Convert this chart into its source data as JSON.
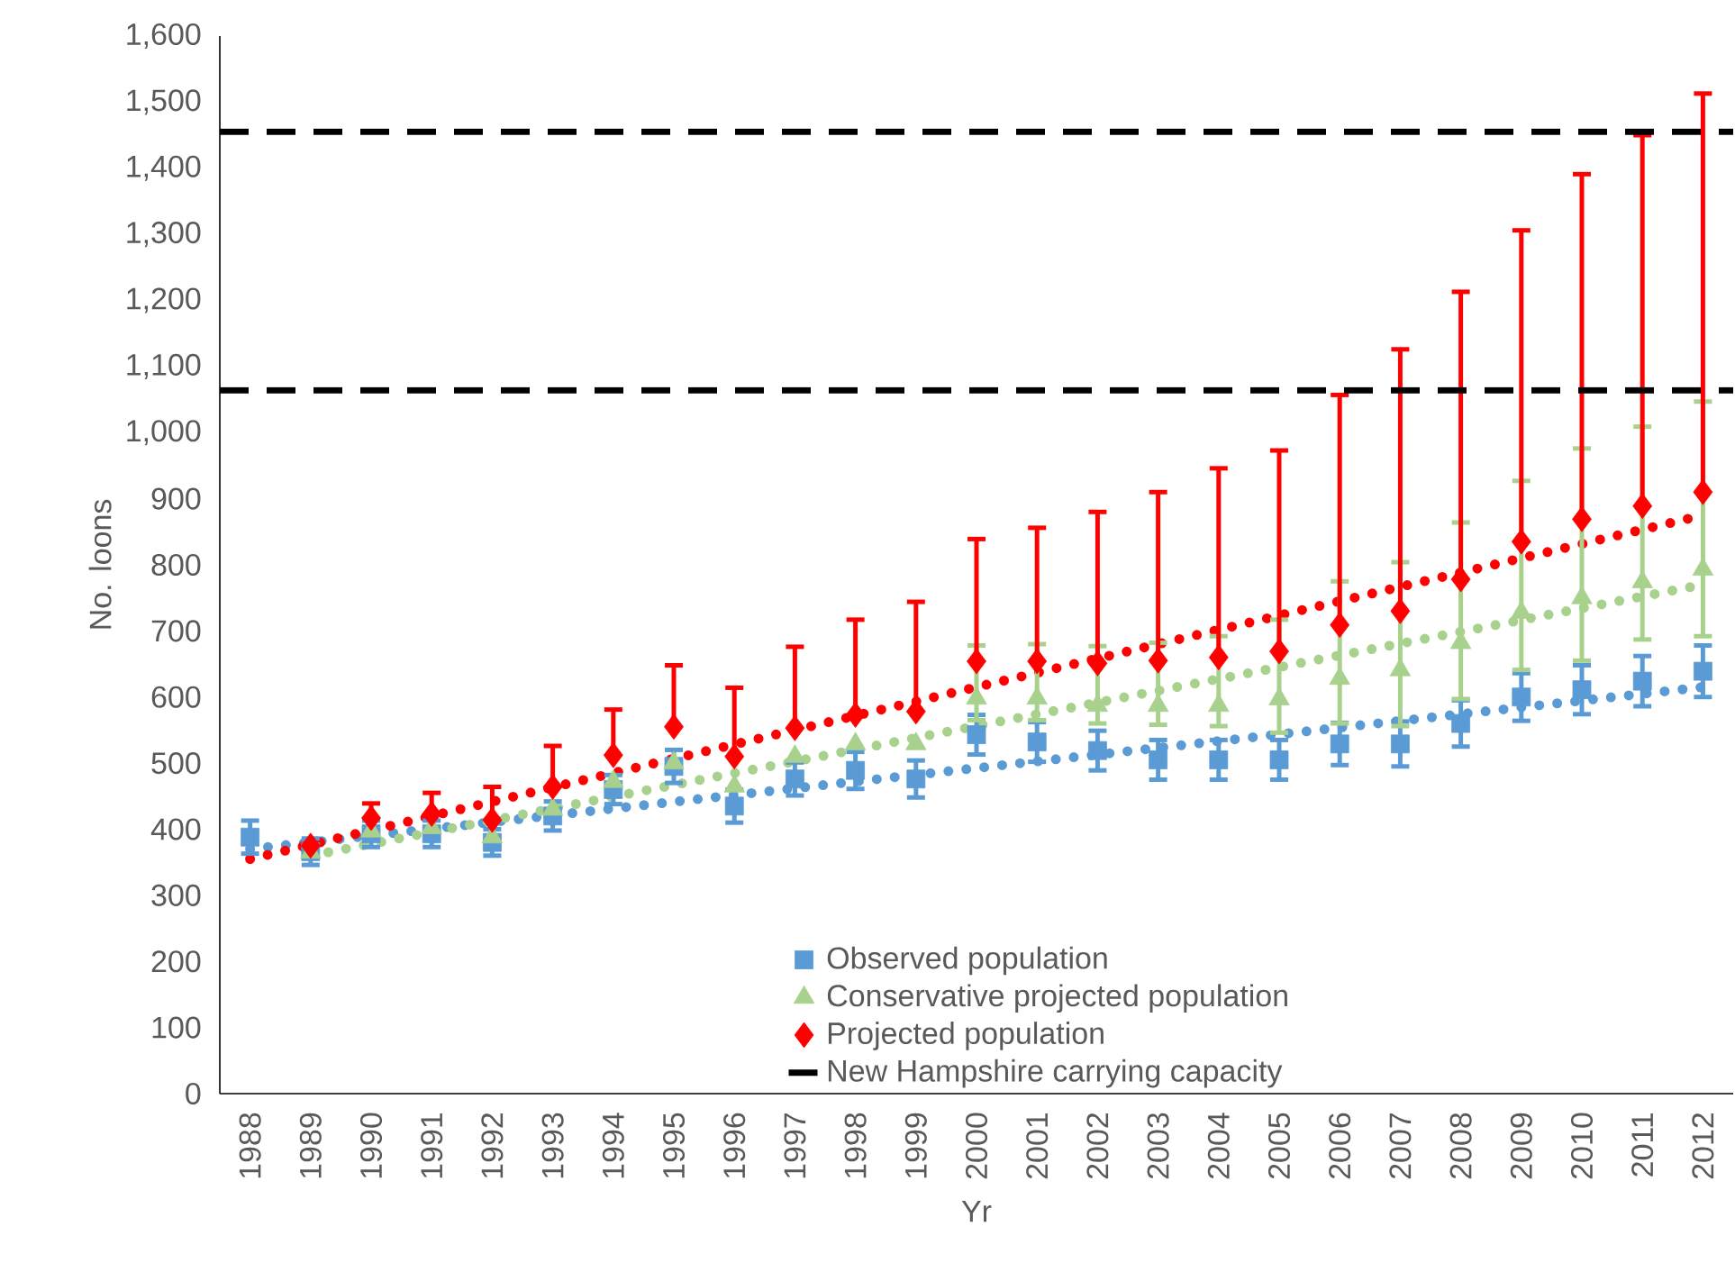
{
  "chart_data": {
    "type": "scatter",
    "xlabel": "Yr",
    "ylabel": "No. loons",
    "x": [
      1988,
      1989,
      1990,
      1991,
      1992,
      1993,
      1994,
      1995,
      1996,
      1997,
      1998,
      1999,
      2000,
      2001,
      2002,
      2003,
      2004,
      2005,
      2006,
      2007,
      2008,
      2009,
      2010,
      2011,
      2012
    ],
    "xlim": [
      1987.5,
      2012.5
    ],
    "xticks": [
      1988,
      1989,
      1990,
      1991,
      1992,
      1993,
      1994,
      1995,
      1996,
      1997,
      1998,
      1999,
      2000,
      2001,
      2002,
      2003,
      2004,
      2005,
      2006,
      2007,
      2008,
      2009,
      2010,
      2011,
      2012
    ],
    "ylim": [
      0,
      1600
    ],
    "yticks": [
      0,
      100,
      200,
      300,
      400,
      500,
      600,
      700,
      800,
      900,
      {
        "value": 1000,
        "label": "1,000"
      },
      {
        "value": 1100,
        "label": "1,100"
      },
      {
        "value": 1200,
        "label": "1,200"
      },
      {
        "value": 1300,
        "label": "1,300"
      },
      {
        "value": 1400,
        "label": "1,400"
      },
      {
        "value": 1500,
        "label": "1,500"
      },
      {
        "value": 1600,
        "label": "1,600"
      }
    ],
    "grid": false,
    "legend": "bottom right",
    "series": [
      {
        "type": "line",
        "color": "#5b9bd5",
        "marker": "none",
        "line_style": "dotted",
        "x": [
          1988,
          2012
        ],
        "values": [
          370,
          615
        ]
      },
      {
        "type": "line",
        "color": "#a9d18e",
        "marker": "none",
        "line_style": "dotted",
        "x": [
          1989,
          2012
        ],
        "values": [
          360,
          770
        ]
      },
      {
        "type": "line",
        "color": "#ff0000",
        "marker": "none",
        "line_style": "dotted",
        "x": [
          1988,
          2012
        ],
        "values": [
          355,
          875
        ]
      },
      {
        "name": "Observed population",
        "color": "#5b9bd5",
        "marker": "square",
        "values": [
          388,
          366,
          393,
          393,
          380,
          420,
          460,
          495,
          435,
          476,
          489,
          476,
          543,
          532,
          519,
          505,
          505,
          505,
          529,
          529,
          560,
          600,
          611,
          624,
          639
        ],
        "errors": [
          25,
          20,
          20,
          20,
          20,
          22,
          22,
          25,
          25,
          25,
          28,
          28,
          30,
          30,
          30,
          30,
          30,
          30,
          32,
          34,
          35,
          36,
          37,
          38,
          39
        ]
      },
      {
        "name": "Conservative projected population",
        "color": "#a9d18e",
        "marker": "triangle",
        "values": [
          null,
          365,
          397,
          402,
          388,
          430,
          472,
          500,
          465,
          510,
          529,
          529,
          598,
          598,
          587,
          587,
          587,
          597,
          628,
          641,
          682,
          728,
          750,
          774,
          793
        ],
        "errors": [
          null,
          null,
          null,
          null,
          null,
          null,
          null,
          null,
          null,
          null,
          null,
          null,
          [
            565,
            678
          ],
          [
            565,
            680
          ],
          [
            560,
            677
          ],
          [
            558,
            682
          ],
          [
            556,
            692
          ],
          [
            546,
            717
          ],
          [
            560,
            775
          ],
          [
            556,
            804
          ],
          [
            597,
            864
          ],
          [
            641,
            927
          ],
          [
            655,
            976
          ],
          [
            687,
            1009
          ],
          [
            692,
            1047
          ]
        ]
      },
      {
        "name": "Projected population",
        "color": "#ff0000",
        "marker": "diamond",
        "values": [
          null,
          375,
          417,
          423,
          414,
          464,
          512,
          555,
          510,
          553,
          573,
          578,
          654,
          654,
          651,
          655,
          660,
          669,
          709,
          730,
          778,
          835,
          869,
          889,
          910
        ],
        "errors": [
          null,
          null,
          [
            417,
            439
          ],
          [
            423,
            455
          ],
          [
            414,
            464
          ],
          [
            464,
            526
          ],
          [
            512,
            581
          ],
          [
            555,
            648
          ],
          [
            510,
            614
          ],
          [
            553,
            676
          ],
          [
            573,
            717
          ],
          [
            578,
            744
          ],
          [
            654,
            839
          ],
          [
            654,
            856
          ],
          [
            651,
            880
          ],
          [
            655,
            910
          ],
          [
            660,
            946
          ],
          [
            669,
            973
          ],
          [
            709,
            1057
          ],
          [
            730,
            1126
          ],
          [
            778,
            1213
          ],
          [
            835,
            1306
          ],
          [
            869,
            1391
          ],
          [
            889,
            1450
          ],
          [
            910,
            1513
          ]
        ]
      }
    ],
    "ref_lines": [
      {
        "axis": "y",
        "value": 1064,
        "label": "New Hampshire carrying capacity",
        "color": "#000000",
        "line_style": "dashed"
      },
      {
        "axis": "y",
        "value": 1455,
        "color": "#000000",
        "line_style": "dashed"
      }
    ]
  }
}
